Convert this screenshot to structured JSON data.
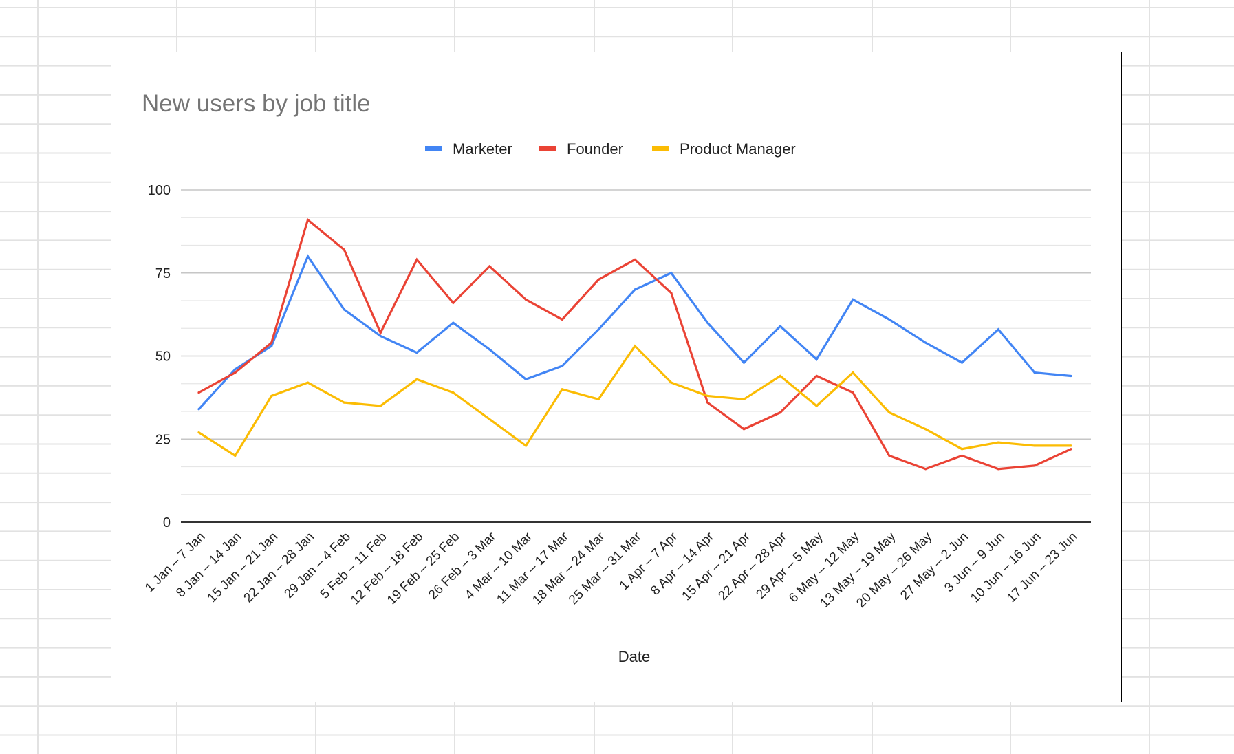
{
  "chart_data": {
    "type": "line",
    "title": "New users by job title",
    "xlabel": "Date",
    "ylabel": "",
    "ylim": [
      0,
      100
    ],
    "yticks": [
      0,
      25,
      50,
      75,
      100
    ],
    "grid": true,
    "legend_position": "top",
    "categories": [
      "1 Jan – 7 Jan",
      "8 Jan – 14 Jan",
      "15 Jan – 21 Jan",
      "22 Jan – 28 Jan",
      "29 Jan – 4 Feb",
      "5 Feb – 11 Feb",
      "12 Feb – 18 Feb",
      "19 Feb – 25 Feb",
      "26 Feb – 3 Mar",
      "4 Mar – 10 Mar",
      "11 Mar – 17 Mar",
      "18 Mar – 24 Mar",
      "25 Mar – 31 Mar",
      "1 Apr – 7 Apr",
      "8 Apr – 14 Apr",
      "15 Apr – 21 Apr",
      "22 Apr – 28 Apr",
      "29 Apr – 5 May",
      "6 May – 12 May",
      "13 May – 19 May",
      "20 May – 26 May",
      "27 May – 2 Jun",
      "3 Jun – 9 Jun",
      "10 Jun – 16 Jun",
      "17 Jun – 23 Jun"
    ],
    "series": [
      {
        "name": "Marketer",
        "color": "#4285f4",
        "values": [
          34,
          46,
          53,
          80,
          64,
          56,
          51,
          60,
          52,
          43,
          47,
          58,
          70,
          75,
          60,
          48,
          59,
          49,
          67,
          61,
          54,
          48,
          58,
          45,
          44
        ]
      },
      {
        "name": "Founder",
        "color": "#ea4335",
        "values": [
          39,
          45,
          54,
          91,
          82,
          57,
          79,
          66,
          77,
          67,
          61,
          73,
          79,
          69,
          36,
          28,
          33,
          44,
          39,
          20,
          16,
          20,
          16,
          17,
          22
        ]
      },
      {
        "name": "Product Manager",
        "color": "#fbbc04",
        "values": [
          27,
          20,
          38,
          42,
          36,
          35,
          43,
          39,
          31,
          23,
          40,
          37,
          53,
          42,
          38,
          37,
          44,
          35,
          45,
          33,
          28,
          22,
          24,
          23,
          23
        ]
      }
    ]
  }
}
